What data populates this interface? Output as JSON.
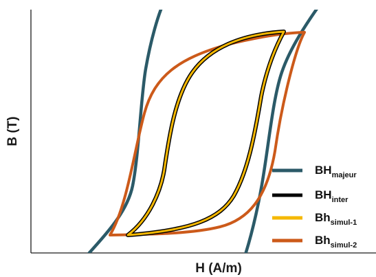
{
  "chart_data": {
    "type": "line",
    "xlabel": "H (A/m)",
    "ylabel": "B (T)",
    "xlim": [
      0,
      100
    ],
    "ylim": [
      0,
      100
    ],
    "axes_ticks": false,
    "grid": false,
    "legend": {
      "position": "bottom-right",
      "entries": [
        {
          "main": "BH",
          "sub": "majeur",
          "color": "#2b5a68"
        },
        {
          "main": "BH",
          "sub": "inter",
          "color": "#000000"
        },
        {
          "main": "Bh",
          "sub": "simul-1",
          "color": "#f5b800"
        },
        {
          "main": "Bh",
          "sub": "simul-2",
          "color": "#cc5a1a"
        }
      ]
    },
    "series": [
      {
        "key": "majeur",
        "color": "#2b5a68",
        "points_approx": [
          [
            17,
            0
          ],
          [
            29,
            35
          ],
          [
            31,
            50
          ],
          [
            33,
            65
          ],
          [
            38,
            100
          ]
        ],
        "points_approx_2": [
          [
            60,
            0
          ],
          [
            73,
            35
          ],
          [
            76,
            50
          ],
          [
            79,
            65
          ],
          [
            85,
            100
          ]
        ]
      },
      {
        "key": "inter",
        "color": "#000000",
        "upper": [
          [
            29,
            8
          ],
          [
            41,
            32
          ],
          [
            48,
            50
          ],
          [
            53,
            65
          ],
          [
            58,
            78
          ],
          [
            67,
            90
          ],
          [
            73,
            94
          ]
        ],
        "lower": [
          [
            29,
            8
          ],
          [
            40,
            10
          ],
          [
            47,
            14
          ],
          [
            53,
            25
          ],
          [
            59,
            45
          ],
          [
            66,
            72
          ],
          [
            73,
            94
          ]
        ]
      },
      {
        "key": "simul-1",
        "color": "#f5b800",
        "upper": [
          [
            29,
            8
          ],
          [
            41,
            32
          ],
          [
            48,
            50
          ],
          [
            53,
            65
          ],
          [
            58,
            78
          ],
          [
            67,
            90
          ],
          [
            73,
            94
          ]
        ],
        "lower": [
          [
            29,
            8
          ],
          [
            40,
            10
          ],
          [
            47,
            14
          ],
          [
            53,
            25
          ],
          [
            59,
            45
          ],
          [
            66,
            72
          ],
          [
            73,
            94
          ]
        ]
      },
      {
        "key": "simul-2",
        "color": "#cc5a1a",
        "upper": [
          [
            18,
            8
          ],
          [
            21,
            40
          ],
          [
            25,
            62
          ],
          [
            35,
            78
          ],
          [
            55,
            88
          ],
          [
            75,
            93
          ],
          [
            80,
            94
          ]
        ],
        "lower": [
          [
            18,
            8
          ],
          [
            30,
            9
          ],
          [
            50,
            12
          ],
          [
            60,
            18
          ],
          [
            71,
            30
          ],
          [
            74,
            45
          ],
          [
            80,
            94
          ]
        ]
      }
    ]
  }
}
